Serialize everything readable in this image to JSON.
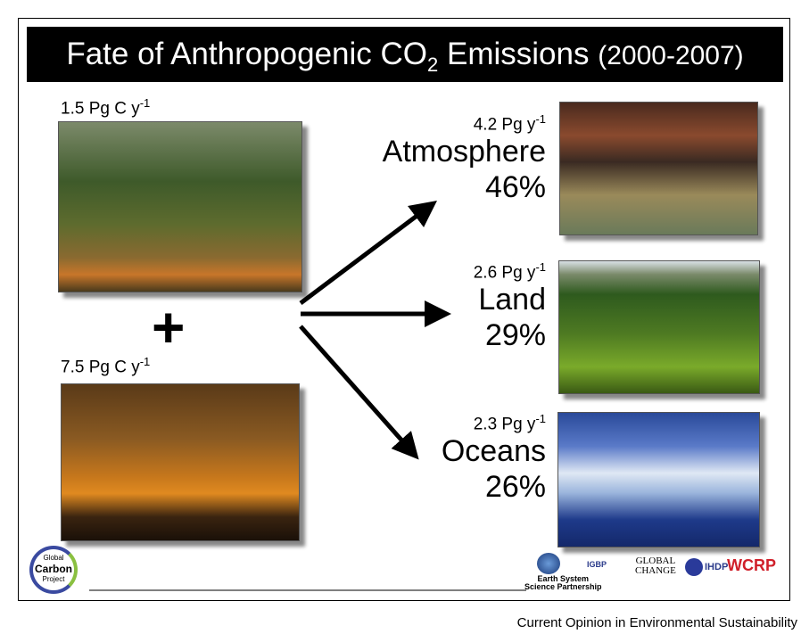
{
  "title": {
    "main": "Fate of Anthropogenic CO",
    "sub": "2",
    "rest": " Emissions",
    "years": "(2000-2007)"
  },
  "sources": [
    {
      "flux": "1.5 Pg C y",
      "exp": "-1"
    },
    {
      "flux": "7.5 Pg C y",
      "exp": "-1"
    }
  ],
  "plus": "+",
  "sinks": [
    {
      "flux": "4.2 Pg y",
      "exp": "-1",
      "name": "Atmosphere",
      "share": "46%"
    },
    {
      "flux": "2.6 Pg y",
      "exp": "-1",
      "name": "Land",
      "share": "29%"
    },
    {
      "flux": "2.3 Pg y",
      "exp": "-1",
      "name": "Oceans",
      "share": "26%"
    }
  ],
  "logos": {
    "gcp": [
      "Global",
      "Carbon",
      "Project"
    ],
    "essp": [
      "Earth System",
      "Science Partnership"
    ],
    "igbp": "IGBP",
    "global_change": [
      "GLOBAL",
      "CHANGE"
    ],
    "ihdp": "IHDP",
    "wcrp": "WCRP"
  },
  "footer": "Current Opinion in Environmental Sustainability"
}
